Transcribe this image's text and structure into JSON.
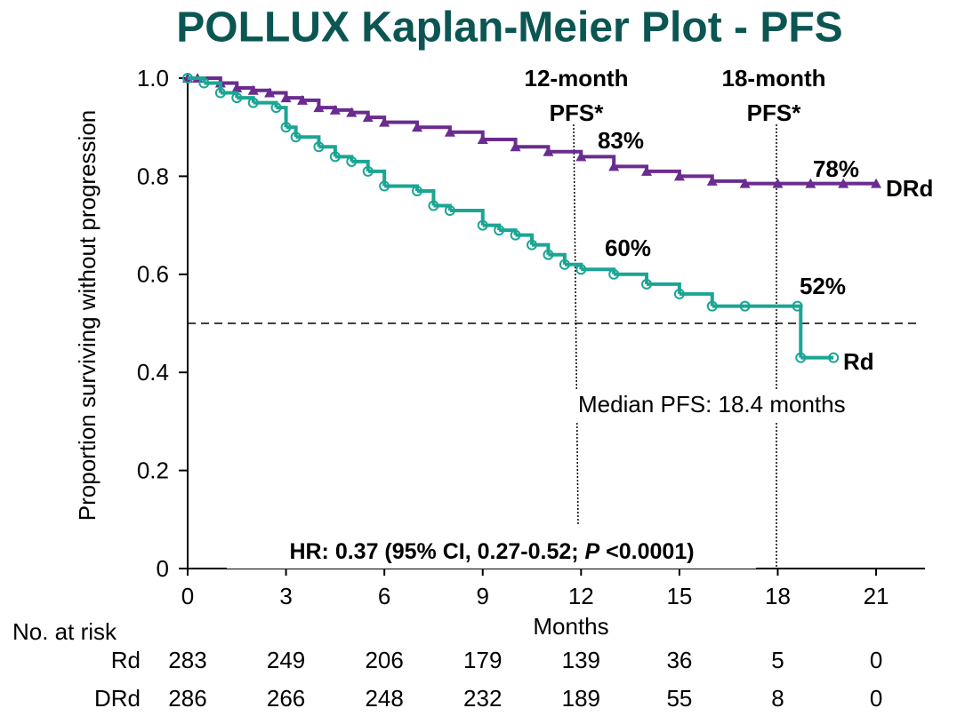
{
  "chart_data": {
    "type": "km",
    "title": "POLLUX Kaplan-Meier Plot - PFS",
    "y_label": "Proportion surviving without progression",
    "x_label": "Months",
    "xlim": [
      0,
      22.5
    ],
    "ylim": [
      0,
      1
    ],
    "xticks": [
      0,
      3,
      6,
      9,
      12,
      15,
      18,
      21
    ],
    "yticks": [
      0,
      0.2,
      0.4,
      0.6,
      0.8,
      {
        "value": 1,
        "label": "1.0"
      }
    ],
    "series": [
      {
        "name": "DRd",
        "color": "#6b2c8f",
        "marker": "triangle",
        "x": [
          0,
          0.3,
          1,
          1.5,
          2,
          2.5,
          3,
          3.5,
          4,
          4.5,
          5,
          5.5,
          6,
          7,
          8,
          9,
          10,
          11,
          12,
          13,
          14,
          15,
          16,
          17,
          18,
          19,
          20,
          21
        ],
        "values": [
          1.0,
          1.0,
          0.99,
          0.98,
          0.975,
          0.97,
          0.96,
          0.955,
          0.94,
          0.935,
          0.93,
          0.92,
          0.91,
          0.9,
          0.89,
          0.875,
          0.86,
          0.85,
          0.84,
          0.82,
          0.81,
          0.8,
          0.79,
          0.785,
          0.785,
          0.785,
          0.785,
          0.785
        ]
      },
      {
        "name": "Rd",
        "color": "#1ba594",
        "marker": "circle",
        "x": [
          0,
          0.5,
          1,
          1.5,
          2,
          2.7,
          3,
          3.3,
          4,
          4.5,
          5,
          5.5,
          6,
          7,
          7.5,
          8,
          9,
          9.5,
          10,
          10.5,
          11,
          11.5,
          12,
          13,
          14,
          15,
          16,
          17,
          18.6,
          18.7,
          19.7
        ],
        "values": [
          1.0,
          0.99,
          0.97,
          0.96,
          0.95,
          0.94,
          0.9,
          0.88,
          0.86,
          0.84,
          0.83,
          0.81,
          0.78,
          0.77,
          0.74,
          0.73,
          0.7,
          0.69,
          0.68,
          0.66,
          0.64,
          0.62,
          0.61,
          0.6,
          0.58,
          0.56,
          0.535,
          0.535,
          0.535,
          0.43,
          0.43
        ]
      }
    ],
    "annotations": [
      "12-month",
      "PFS*",
      "18-month",
      "PFS*",
      "83%",
      "60%",
      "78%",
      "52%",
      "Median PFS: 18.4 months"
    ],
    "hr_text": [
      "HR: 0.37 (95% CI, 0.27-0.52; ",
      "P",
      " <0.0001)"
    ],
    "risk_table": {
      "title": "No. at risk",
      "rows": [
        {
          "label": "Rd",
          "values": [
            283,
            249,
            206,
            179,
            139,
            36,
            5,
            0
          ]
        },
        {
          "label": "DRd",
          "values": [
            286,
            266,
            248,
            232,
            189,
            55,
            8,
            0
          ]
        }
      ]
    }
  }
}
